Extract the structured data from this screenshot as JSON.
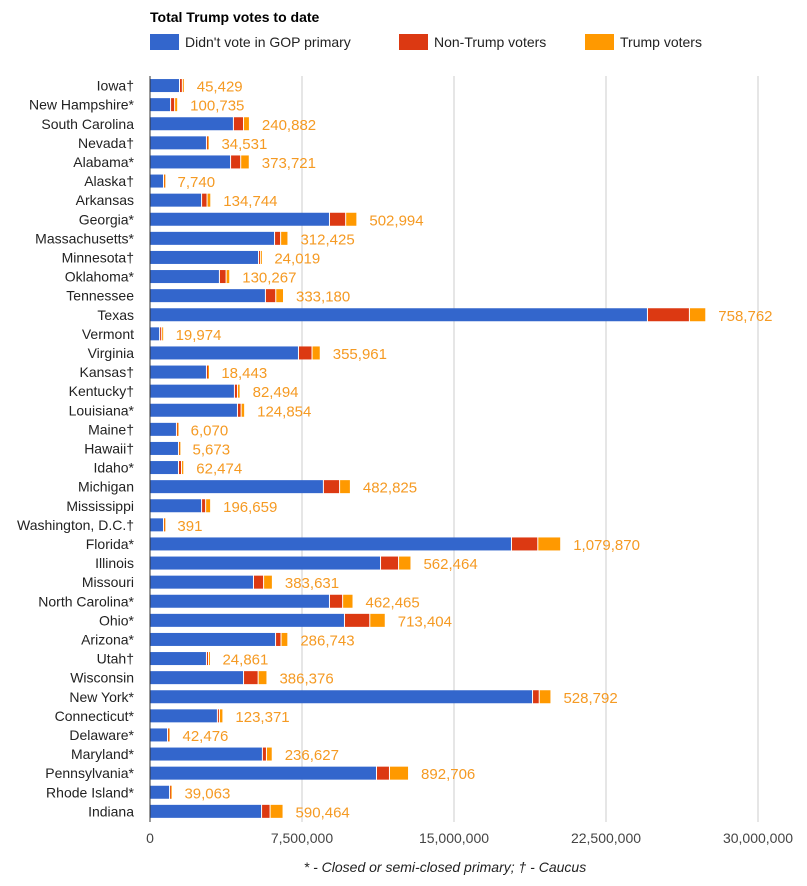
{
  "chart_data": {
    "type": "bar",
    "orientation": "horizontal",
    "stacked": true,
    "title": "Total Trump votes to date",
    "legend_position": "top",
    "footnote": "* - Closed or semi-closed primary; † - Caucus",
    "xlabel": "",
    "ylabel": "",
    "xlim": [
      0,
      30000000
    ],
    "xticks": [
      0,
      7500000,
      15000000,
      22500000,
      30000000
    ],
    "xtick_labels": [
      "0",
      "7,500,000",
      "15,000,000",
      "22,500,000",
      "30,000,000"
    ],
    "grid": true,
    "categories": [
      "Iowa†",
      "New Hampshire*",
      "South Carolina",
      "Nevada†",
      "Alabama*",
      "Alaska†",
      "Arkansas",
      "Georgia*",
      "Massachusetts*",
      "Minnesota†",
      "Oklahoma*",
      "Tennessee",
      "Texas",
      "Vermont",
      "Virginia",
      "Kansas†",
      "Kentucky†",
      "Louisiana*",
      "Maine†",
      "Hawaii†",
      "Idaho*",
      "Michigan",
      "Mississippi",
      "Washington, D.C.†",
      "Florida*",
      "Illinois",
      "Missouri",
      "North Carolina*",
      "Ohio*",
      "Arizona*",
      "Utah†",
      "Wisconsin",
      "New York*",
      "Connecticut*",
      "Delaware*",
      "Maryland*",
      "Pennsylvania*",
      "Rhode Island*",
      "Indiana"
    ],
    "series": [
      {
        "name": "Didn't vote in GOP primary",
        "color": "#3366cc",
        "values": [
          1480000,
          1040000,
          4140000,
          2810000,
          4000000,
          690000,
          2570000,
          8880000,
          6170000,
          5380000,
          3450000,
          5720000,
          24570000,
          500000,
          7350000,
          2810000,
          4190000,
          4340000,
          1330000,
          1430000,
          1430000,
          8580000,
          2570000,
          690000,
          17860000,
          11400000,
          5130000,
          8880000,
          9620000,
          6220000,
          2810000,
          4640000,
          18900000,
          3350000,
          890000,
          5570000,
          11200000,
          990000,
          5530000
        ]
      },
      {
        "name": "Non-Trump voters",
        "color": "#dc3912",
        "values": [
          140000,
          200000,
          500000,
          40000,
          500000,
          20000,
          270000,
          800000,
          300000,
          90000,
          330000,
          510000,
          2070000,
          100000,
          670000,
          50000,
          150000,
          180000,
          30000,
          20000,
          150000,
          800000,
          200000,
          20000,
          1300000,
          890000,
          500000,
          650000,
          1250000,
          270000,
          100000,
          720000,
          330000,
          100000,
          30000,
          200000,
          640000,
          30000,
          420000
        ]
      },
      {
        "name": "Trump voters",
        "color": "#ff9900",
        "values": [
          45429,
          100735,
          240882,
          34531,
          373721,
          7740,
          134744,
          502994,
          312425,
          24019,
          130267,
          333180,
          758762,
          19974,
          355961,
          18443,
          82494,
          124854,
          6070,
          5673,
          62474,
          482825,
          196659,
          391,
          1079870,
          562464,
          383631,
          462465,
          713404,
          286743,
          24861,
          386376,
          528792,
          123371,
          42476,
          236627,
          892706,
          39063,
          590464
        ]
      }
    ],
    "data_labels": [
      "45,429",
      "100,735",
      "240,882",
      "34,531",
      "373,721",
      "7,740",
      "134,744",
      "502,994",
      "312,425",
      "24,019",
      "130,267",
      "333,180",
      "758,762",
      "19,974",
      "355,961",
      "18,443",
      "82,494",
      "124,854",
      "6,070",
      "5,673",
      "62,474",
      "482,825",
      "196,659",
      "391",
      "1,079,870",
      "562,464",
      "383,631",
      "462,465",
      "713,404",
      "286,743",
      "24,861",
      "386,376",
      "528,792",
      "123,371",
      "42,476",
      "236,627",
      "892,706",
      "39,063",
      "590,464"
    ]
  }
}
